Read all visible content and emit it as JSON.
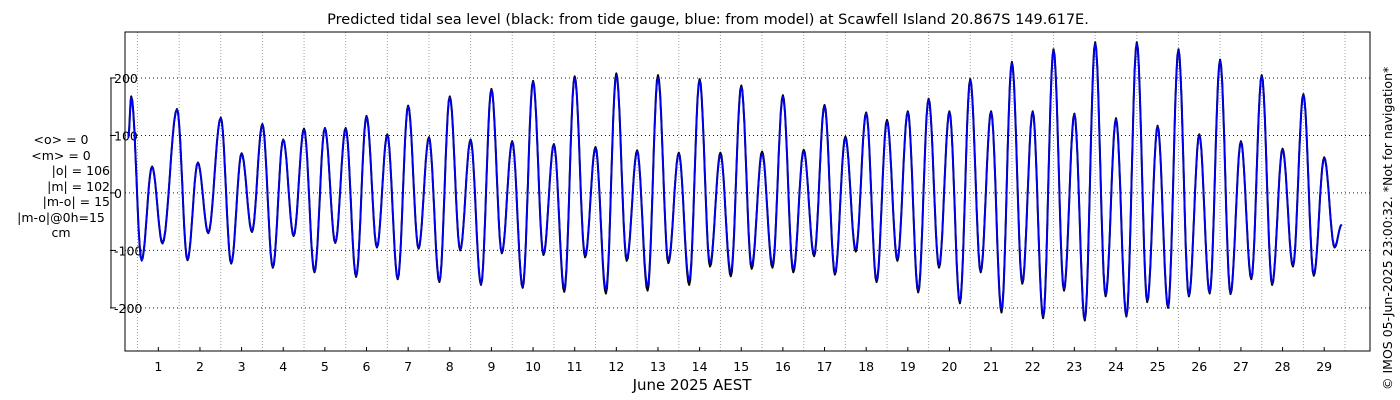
{
  "chart_data": {
    "type": "line",
    "title": "Predicted tidal sea level (black: from tide gauge, blue: from model) at Scawfell Island 20.867S 149.617E.",
    "xlabel": "June 2025 AEST",
    "ylabel": "",
    "x_ticks": [
      "1",
      "2",
      "3",
      "4",
      "5",
      "6",
      "7",
      "8",
      "9",
      "10",
      "11",
      "12",
      "13",
      "14",
      "15",
      "16",
      "17",
      "18",
      "19",
      "20",
      "21",
      "22",
      "23",
      "24",
      "25",
      "26",
      "27",
      "28",
      "29"
    ],
    "xlim": [
      0.2,
      30.1
    ],
    "y_ticks": [
      -200,
      -100,
      0,
      100,
      200
    ],
    "ylim": [
      -275,
      280
    ],
    "grid": true,
    "series": [
      {
        "name": "from tide gauge",
        "color": "#000000",
        "peaks": [
          {
            "day": 0.35,
            "v": 168
          },
          {
            "day": 0.6,
            "v": -117
          },
          {
            "day": 0.85,
            "v": 46
          },
          {
            "day": 1.1,
            "v": -88
          },
          {
            "day": 1.45,
            "v": 146
          },
          {
            "day": 1.7,
            "v": -117
          },
          {
            "day": 1.95,
            "v": 53
          },
          {
            "day": 2.2,
            "v": -70
          },
          {
            "day": 2.5,
            "v": 131
          },
          {
            "day": 2.75,
            "v": -123
          },
          {
            "day": 3.0,
            "v": 69
          },
          {
            "day": 3.25,
            "v": -68
          },
          {
            "day": 3.5,
            "v": 120
          },
          {
            "day": 3.75,
            "v": -130
          },
          {
            "day": 4.0,
            "v": 93
          },
          {
            "day": 4.25,
            "v": -75
          },
          {
            "day": 4.5,
            "v": 112
          },
          {
            "day": 4.75,
            "v": -138
          },
          {
            "day": 5.0,
            "v": 113
          },
          {
            "day": 5.25,
            "v": -87
          },
          {
            "day": 5.5,
            "v": 113
          },
          {
            "day": 5.75,
            "v": -146
          },
          {
            "day": 6.0,
            "v": 134
          },
          {
            "day": 6.25,
            "v": -95
          },
          {
            "day": 6.5,
            "v": 102
          },
          {
            "day": 6.75,
            "v": -150
          },
          {
            "day": 7.0,
            "v": 152
          },
          {
            "day": 7.25,
            "v": -97
          },
          {
            "day": 7.5,
            "v": 97
          },
          {
            "day": 7.75,
            "v": -155
          },
          {
            "day": 8.0,
            "v": 168
          },
          {
            "day": 8.25,
            "v": -100
          },
          {
            "day": 8.5,
            "v": 93
          },
          {
            "day": 8.75,
            "v": -160
          },
          {
            "day": 9.0,
            "v": 181
          },
          {
            "day": 9.25,
            "v": -105
          },
          {
            "day": 9.5,
            "v": 90
          },
          {
            "day": 9.75,
            "v": -165
          },
          {
            "day": 10.0,
            "v": 195
          },
          {
            "day": 10.25,
            "v": -108
          },
          {
            "day": 10.5,
            "v": 85
          },
          {
            "day": 10.75,
            "v": -172
          },
          {
            "day": 11.0,
            "v": 203
          },
          {
            "day": 11.25,
            "v": -112
          },
          {
            "day": 11.5,
            "v": 80
          },
          {
            "day": 11.75,
            "v": -175
          },
          {
            "day": 12.0,
            "v": 208
          },
          {
            "day": 12.25,
            "v": -118
          },
          {
            "day": 12.5,
            "v": 74
          },
          {
            "day": 12.75,
            "v": -170
          },
          {
            "day": 13.0,
            "v": 205
          },
          {
            "day": 13.25,
            "v": -122
          },
          {
            "day": 13.5,
            "v": 70
          },
          {
            "day": 13.75,
            "v": -160
          },
          {
            "day": 14.0,
            "v": 198
          },
          {
            "day": 14.25,
            "v": -128
          },
          {
            "day": 14.5,
            "v": 70
          },
          {
            "day": 14.75,
            "v": -145
          },
          {
            "day": 15.0,
            "v": 187
          },
          {
            "day": 15.25,
            "v": -132
          },
          {
            "day": 15.5,
            "v": 72
          },
          {
            "day": 15.75,
            "v": -130
          },
          {
            "day": 16.0,
            "v": 170
          },
          {
            "day": 16.25,
            "v": -138
          },
          {
            "day": 16.5,
            "v": 75
          },
          {
            "day": 16.75,
            "v": -110
          },
          {
            "day": 17.0,
            "v": 153
          },
          {
            "day": 17.25,
            "v": -142
          },
          {
            "day": 17.5,
            "v": 98
          },
          {
            "day": 17.75,
            "v": -102
          },
          {
            "day": 18.0,
            "v": 140
          },
          {
            "day": 18.25,
            "v": -155
          },
          {
            "day": 18.5,
            "v": 127
          },
          {
            "day": 18.75,
            "v": -118
          },
          {
            "day": 19.0,
            "v": 142
          },
          {
            "day": 19.25,
            "v": -173
          },
          {
            "day": 19.5,
            "v": 164
          },
          {
            "day": 19.75,
            "v": -130
          },
          {
            "day": 20.0,
            "v": 142
          },
          {
            "day": 20.25,
            "v": -192
          },
          {
            "day": 20.5,
            "v": 198
          },
          {
            "day": 20.75,
            "v": -138
          },
          {
            "day": 21.0,
            "v": 142
          },
          {
            "day": 21.25,
            "v": -208
          },
          {
            "day": 21.5,
            "v": 228
          },
          {
            "day": 21.75,
            "v": -158
          },
          {
            "day": 22.0,
            "v": 142
          },
          {
            "day": 22.25,
            "v": -218
          },
          {
            "day": 22.5,
            "v": 250
          },
          {
            "day": 22.75,
            "v": -170
          },
          {
            "day": 23.0,
            "v": 138
          },
          {
            "day": 23.25,
            "v": -222
          },
          {
            "day": 23.5,
            "v": 262
          },
          {
            "day": 23.75,
            "v": -180
          },
          {
            "day": 24.0,
            "v": 130
          },
          {
            "day": 24.25,
            "v": -215
          },
          {
            "day": 24.5,
            "v": 262
          },
          {
            "day": 24.75,
            "v": -190
          },
          {
            "day": 25.0,
            "v": 117
          },
          {
            "day": 25.25,
            "v": -200
          },
          {
            "day": 25.5,
            "v": 250
          },
          {
            "day": 25.75,
            "v": -180
          },
          {
            "day": 26.0,
            "v": 102
          },
          {
            "day": 26.25,
            "v": -175
          },
          {
            "day": 26.5,
            "v": 232
          },
          {
            "day": 26.75,
            "v": -176
          },
          {
            "day": 27.0,
            "v": 90
          },
          {
            "day": 27.25,
            "v": -150
          },
          {
            "day": 27.5,
            "v": 205
          },
          {
            "day": 27.75,
            "v": -160
          },
          {
            "day": 28.0,
            "v": 77
          },
          {
            "day": 28.25,
            "v": -128
          },
          {
            "day": 28.5,
            "v": 172
          },
          {
            "day": 28.75,
            "v": -144
          },
          {
            "day": 29.0,
            "v": 62
          },
          {
            "day": 29.25,
            "v": -95
          }
        ]
      },
      {
        "name": "from model",
        "color": "#0000ee",
        "peaks": [
          {
            "day": 0.35,
            "v": 166
          },
          {
            "day": 0.6,
            "v": -118
          },
          {
            "day": 0.85,
            "v": 45
          },
          {
            "day": 1.1,
            "v": -86
          },
          {
            "day": 1.45,
            "v": 145
          },
          {
            "day": 1.7,
            "v": -115
          },
          {
            "day": 1.95,
            "v": 52
          },
          {
            "day": 2.2,
            "v": -68
          },
          {
            "day": 2.5,
            "v": 130
          },
          {
            "day": 2.75,
            "v": -121
          },
          {
            "day": 3.0,
            "v": 67
          },
          {
            "day": 3.25,
            "v": -66
          },
          {
            "day": 3.5,
            "v": 118
          },
          {
            "day": 3.75,
            "v": -128
          },
          {
            "day": 4.0,
            "v": 92
          },
          {
            "day": 4.25,
            "v": -73
          },
          {
            "day": 4.5,
            "v": 110
          },
          {
            "day": 4.75,
            "v": -136
          },
          {
            "day": 5.0,
            "v": 112
          },
          {
            "day": 5.25,
            "v": -85
          },
          {
            "day": 5.5,
            "v": 111
          },
          {
            "day": 5.75,
            "v": -144
          },
          {
            "day": 6.0,
            "v": 132
          },
          {
            "day": 6.25,
            "v": -93
          },
          {
            "day": 6.5,
            "v": 100
          },
          {
            "day": 6.75,
            "v": -148
          },
          {
            "day": 7.0,
            "v": 150
          },
          {
            "day": 7.25,
            "v": -95
          },
          {
            "day": 7.5,
            "v": 95
          },
          {
            "day": 7.75,
            "v": -152
          },
          {
            "day": 8.0,
            "v": 166
          },
          {
            "day": 8.25,
            "v": -98
          },
          {
            "day": 8.5,
            "v": 91
          },
          {
            "day": 8.75,
            "v": -158
          },
          {
            "day": 9.0,
            "v": 179
          },
          {
            "day": 9.25,
            "v": -103
          },
          {
            "day": 9.5,
            "v": 88
          },
          {
            "day": 9.75,
            "v": -162
          },
          {
            "day": 10.0,
            "v": 193
          },
          {
            "day": 10.25,
            "v": -105
          },
          {
            "day": 10.5,
            "v": 83
          },
          {
            "day": 10.75,
            "v": -166
          },
          {
            "day": 11.0,
            "v": 200
          },
          {
            "day": 11.25,
            "v": -108
          },
          {
            "day": 11.5,
            "v": 77
          },
          {
            "day": 11.75,
            "v": -168
          },
          {
            "day": 12.0,
            "v": 204
          },
          {
            "day": 12.25,
            "v": -113
          },
          {
            "day": 12.5,
            "v": 72
          },
          {
            "day": 12.75,
            "v": -162
          },
          {
            "day": 13.0,
            "v": 200
          },
          {
            "day": 13.25,
            "v": -117
          },
          {
            "day": 13.5,
            "v": 68
          },
          {
            "day": 13.75,
            "v": -152
          },
          {
            "day": 14.0,
            "v": 195
          },
          {
            "day": 14.25,
            "v": -122
          },
          {
            "day": 14.5,
            "v": 66
          },
          {
            "day": 14.75,
            "v": -138
          },
          {
            "day": 15.0,
            "v": 184
          },
          {
            "day": 15.25,
            "v": -126
          },
          {
            "day": 15.5,
            "v": 68
          },
          {
            "day": 15.75,
            "v": -124
          },
          {
            "day": 16.0,
            "v": 167
          },
          {
            "day": 16.25,
            "v": -133
          },
          {
            "day": 16.5,
            "v": 72
          },
          {
            "day": 16.75,
            "v": -106
          },
          {
            "day": 17.0,
            "v": 150
          },
          {
            "day": 17.25,
            "v": -138
          },
          {
            "day": 17.5,
            "v": 95
          },
          {
            "day": 17.75,
            "v": -98
          },
          {
            "day": 18.0,
            "v": 138
          },
          {
            "day": 18.25,
            "v": -151
          },
          {
            "day": 18.5,
            "v": 124
          },
          {
            "day": 18.75,
            "v": -114
          },
          {
            "day": 19.0,
            "v": 140
          },
          {
            "day": 19.25,
            "v": -168
          },
          {
            "day": 19.5,
            "v": 162
          },
          {
            "day": 19.75,
            "v": -126
          },
          {
            "day": 20.0,
            "v": 140
          },
          {
            "day": 20.25,
            "v": -188
          },
          {
            "day": 20.5,
            "v": 196
          },
          {
            "day": 20.75,
            "v": -134
          },
          {
            "day": 21.0,
            "v": 140
          },
          {
            "day": 21.25,
            "v": -203
          },
          {
            "day": 21.5,
            "v": 226
          },
          {
            "day": 21.75,
            "v": -154
          },
          {
            "day": 22.0,
            "v": 140
          },
          {
            "day": 22.25,
            "v": -214
          },
          {
            "day": 22.5,
            "v": 248
          },
          {
            "day": 22.75,
            "v": -166
          },
          {
            "day": 23.0,
            "v": 136
          },
          {
            "day": 23.25,
            "v": -218
          },
          {
            "day": 23.5,
            "v": 260
          },
          {
            "day": 23.75,
            "v": -176
          },
          {
            "day": 24.0,
            "v": 128
          },
          {
            "day": 24.25,
            "v": -212
          },
          {
            "day": 24.5,
            "v": 260
          },
          {
            "day": 24.75,
            "v": -186
          },
          {
            "day": 25.0,
            "v": 115
          },
          {
            "day": 25.25,
            "v": -197
          },
          {
            "day": 25.5,
            "v": 248
          },
          {
            "day": 25.75,
            "v": -177
          },
          {
            "day": 26.0,
            "v": 100
          },
          {
            "day": 26.25,
            "v": -172
          },
          {
            "day": 26.5,
            "v": 230
          },
          {
            "day": 26.75,
            "v": -173
          },
          {
            "day": 27.0,
            "v": 88
          },
          {
            "day": 27.25,
            "v": -147
          },
          {
            "day": 27.5,
            "v": 203
          },
          {
            "day": 27.75,
            "v": -157
          },
          {
            "day": 28.0,
            "v": 75
          },
          {
            "day": 28.25,
            "v": -125
          },
          {
            "day": 28.5,
            "v": 170
          },
          {
            "day": 28.75,
            "v": -141
          },
          {
            "day": 29.0,
            "v": 60
          },
          {
            "day": 29.25,
            "v": -93
          }
        ]
      }
    ]
  },
  "stats": {
    "mean_o": "<o> = 0",
    "mean_m": "<m> = 0",
    "abs_o": "|o| = 106",
    "abs_m": "|m| = 102",
    "abs_diff": "|m-o| = 15",
    "abs_diff_0h": "|m-o|@0h=15",
    "unit": "cm"
  },
  "credit": "© IMOS 05-Jun-2025 23:00:32. *Not for navigation*"
}
